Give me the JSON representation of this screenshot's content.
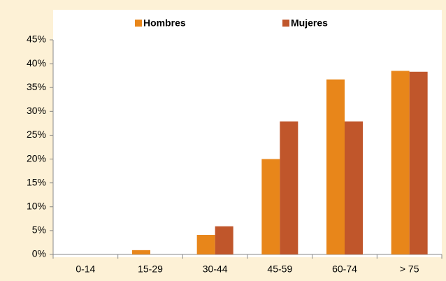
{
  "chart_data": {
    "type": "bar",
    "categories": [
      "0-14",
      "15-29",
      "30-44",
      "45-59",
      "60-74",
      "> 75"
    ],
    "series": [
      {
        "name": "Hombres",
        "color": "#e8861a",
        "values": [
          0,
          0.9,
          4.1,
          20,
          36.7,
          38.5
        ]
      },
      {
        "name": "Mujeres",
        "color": "#c0562b",
        "values": [
          0,
          0,
          5.9,
          27.9,
          27.9,
          38.3
        ]
      }
    ],
    "ylim": [
      0,
      45
    ],
    "yticks": [
      {
        "value": 0,
        "label": "0%"
      },
      {
        "value": 5,
        "label": "5%"
      },
      {
        "value": 10,
        "label": "10%"
      },
      {
        "value": 15,
        "label": "15%"
      },
      {
        "value": 20,
        "label": "20%"
      },
      {
        "value": 25,
        "label": "25%"
      },
      {
        "value": 30,
        "label": "30%"
      },
      {
        "value": 35,
        "label": "35%"
      },
      {
        "value": 40,
        "label": "40%"
      },
      {
        "value": 45,
        "label": "45%"
      }
    ],
    "legend": "top"
  }
}
